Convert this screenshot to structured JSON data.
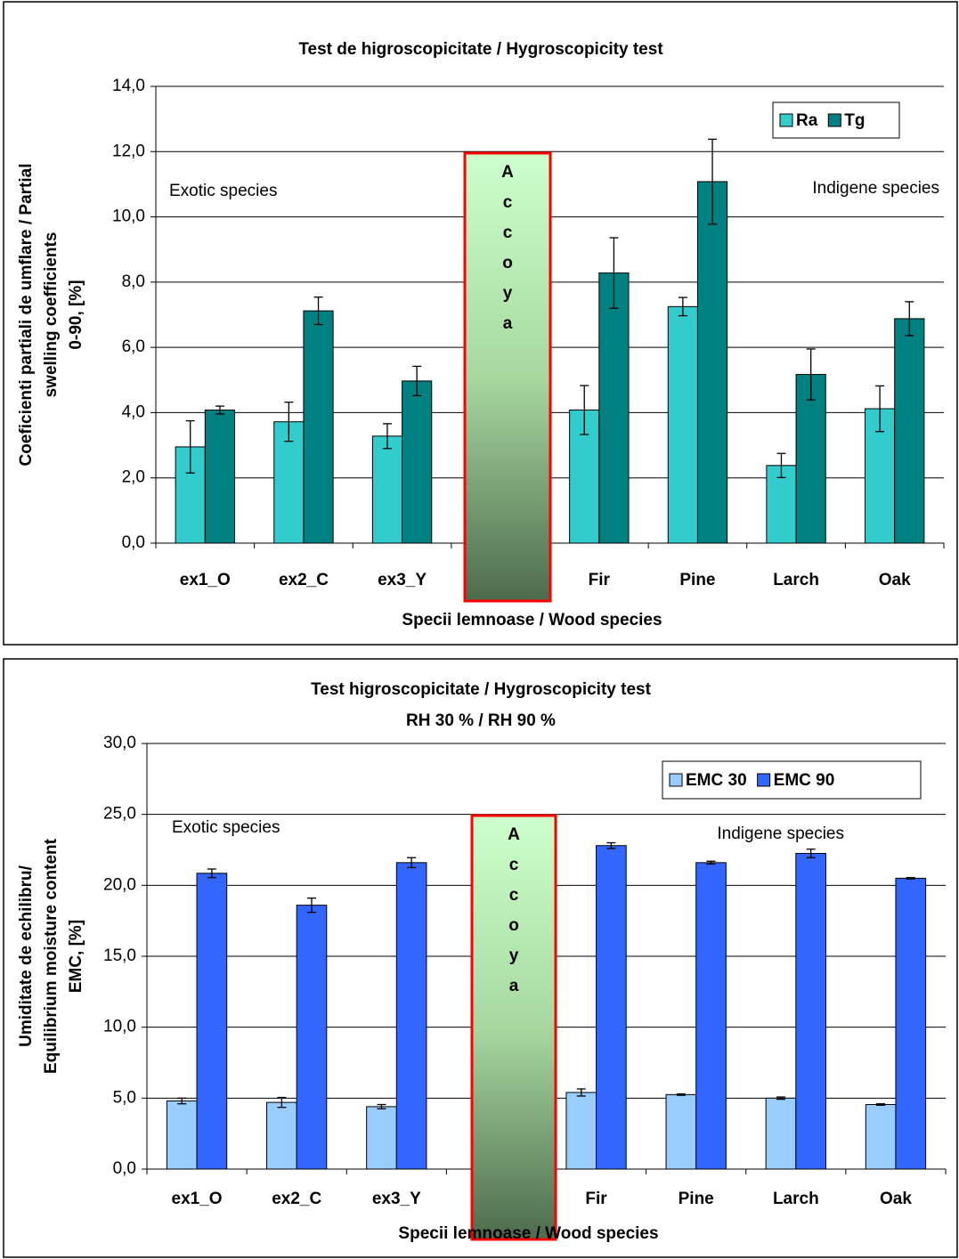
{
  "chart_data": [
    {
      "type": "bar",
      "title": "Test de higroscopicitate / Hygroscopicity test",
      "x_label": "Specii lemnoase / Wood species",
      "y_label": [
        "Coeficienti partiali de umflare / Partial",
        "swelling coefficients",
        "0-90, [%]"
      ],
      "categories": [
        "ex1_O",
        "ex2_C",
        "ex3_Y",
        null,
        "Fir",
        "Pine",
        "Larch",
        "Oak"
      ],
      "series": [
        {
          "name": "Ra",
          "color": "#33cccc",
          "values": [
            2.95,
            3.72,
            3.28,
            null,
            4.08,
            7.25,
            2.38,
            4.12
          ],
          "errors": [
            0.8,
            0.6,
            0.38,
            null,
            0.75,
            0.28,
            0.37,
            0.7
          ]
        },
        {
          "name": "Tg",
          "color": "#008080",
          "values": [
            4.08,
            7.12,
            4.97,
            null,
            8.28,
            11.08,
            5.17,
            6.88
          ],
          "errors": [
            0.12,
            0.42,
            0.45,
            null,
            1.08,
            1.3,
            0.78,
            0.52
          ]
        }
      ],
      "ylim": [
        0,
        14
      ],
      "yticks": [
        {
          "value": 0,
          "label": "0,0"
        },
        {
          "value": 2,
          "label": "2,0"
        },
        {
          "value": 4,
          "label": "4,0"
        },
        {
          "value": 6,
          "label": "6,0"
        },
        {
          "value": 8,
          "label": "8,0"
        },
        {
          "value": 10,
          "label": "10,0"
        },
        {
          "value": 12,
          "label": "12,0"
        },
        {
          "value": 14,
          "label": "14,0"
        }
      ],
      "grid": true,
      "legend": "upper right",
      "annotations": [
        "Exotic species",
        "Indigene species"
      ],
      "highlight_letters": [
        "A",
        "c",
        "c",
        "o",
        "y",
        "a"
      ]
    },
    {
      "type": "bar",
      "title": "Test higroscopicitate / Hygroscopicity test",
      "subtitle": "RH 30 % / RH 90 %",
      "x_label": "Specii lemnoase / Wood species",
      "y_label": [
        "Umiditate de echilibru/",
        "Equilibrium moisture content",
        "EMC, [%]"
      ],
      "categories": [
        "ex1_O",
        "ex2_C",
        "ex3_Y",
        null,
        "Fir",
        "Pine",
        "Larch",
        "Oak"
      ],
      "series": [
        {
          "name": "EMC 30",
          "color": "#99ccff",
          "values": [
            4.8,
            4.7,
            4.4,
            null,
            5.4,
            5.25,
            5.0,
            4.55
          ],
          "errors": [
            0.2,
            0.35,
            0.15,
            null,
            0.25,
            0.05,
            0.08,
            0.05
          ]
        },
        {
          "name": "EMC 90",
          "color": "#3366ff",
          "values": [
            20.85,
            18.6,
            21.6,
            null,
            22.8,
            21.6,
            22.25,
            20.5
          ],
          "errors": [
            0.3,
            0.5,
            0.35,
            null,
            0.2,
            0.1,
            0.3,
            0.05
          ]
        }
      ],
      "ylim": [
        0,
        30
      ],
      "yticks": [
        {
          "value": 0,
          "label": "0,0"
        },
        {
          "value": 5,
          "label": "5,0"
        },
        {
          "value": 10,
          "label": "10,0"
        },
        {
          "value": 15,
          "label": "15,0"
        },
        {
          "value": 20,
          "label": "20,0"
        },
        {
          "value": 25,
          "label": "25,0"
        },
        {
          "value": 30,
          "label": "30,0"
        }
      ],
      "grid": true,
      "legend": "upper right",
      "annotations": [
        "Exotic species",
        "Indigene species"
      ],
      "highlight_letters": [
        "A",
        "c",
        "c",
        "o",
        "y",
        "a"
      ]
    }
  ]
}
